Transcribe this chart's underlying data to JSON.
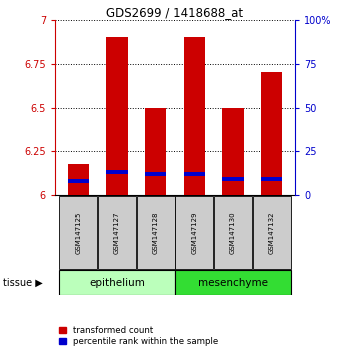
{
  "title": "GDS2699 / 1418688_at",
  "samples": [
    "GSM147125",
    "GSM147127",
    "GSM147128",
    "GSM147129",
    "GSM147130",
    "GSM147132"
  ],
  "red_values": [
    6.18,
    6.9,
    6.5,
    6.9,
    6.5,
    6.7
  ],
  "blue_values": [
    6.08,
    6.13,
    6.12,
    6.12,
    6.09,
    6.09
  ],
  "ymin": 6.0,
  "ymax": 7.0,
  "yticks": [
    6.0,
    6.25,
    6.5,
    6.75,
    7.0
  ],
  "ytick_labels": [
    "6",
    "6.25",
    "6.5",
    "6.75",
    "7"
  ],
  "right_yticks": [
    0,
    25,
    50,
    75,
    100
  ],
  "right_ylabels": [
    "0",
    "25",
    "50",
    "75",
    "100%"
  ],
  "tissue_groups": [
    {
      "label": "epithelium",
      "color": "#bbffbb",
      "count": 3
    },
    {
      "label": "mesenchyme",
      "color": "#33dd33",
      "count": 3
    }
  ],
  "bar_color": "#cc0000",
  "blue_color": "#0000cc",
  "bar_width": 0.55,
  "left_axis_color": "#cc0000",
  "right_axis_color": "#0000cc",
  "background_color": "#ffffff",
  "legend_red": "transformed count",
  "legend_blue": "percentile rank within the sample",
  "tissue_label": "tissue",
  "blue_bar_height": 0.022,
  "sample_box_color": "#cccccc",
  "fig_width": 3.41,
  "fig_height": 3.54,
  "dpi": 100
}
